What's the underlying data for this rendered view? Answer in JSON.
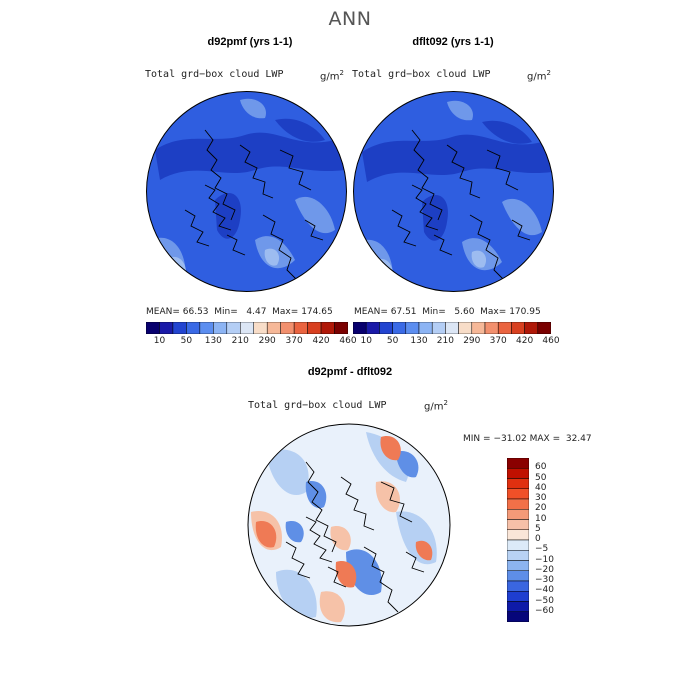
{
  "figure": {
    "title": "ANN"
  },
  "panels": [
    {
      "title": "d92pmf (yrs 1-1)",
      "variable": "Total grd−box cloud LWP",
      "units": "g/m",
      "units_exp": "2",
      "stats": {
        "mean_label": "MEAN=",
        "mean": "66.53",
        "min_label": "Min=",
        "min": "4.47",
        "max_label": "Max=",
        "max": "174.65"
      }
    },
    {
      "title": "dflt092 (yrs 1-1)",
      "variable": "Total grd−box cloud LWP",
      "units": "g/m",
      "units_exp": "2",
      "stats": {
        "mean_label": "MEAN=",
        "mean": "67.51",
        "min_label": "Min=",
        "min": "5.60",
        "max_label": "Max=",
        "max": "170.95"
      }
    }
  ],
  "diff_panel": {
    "title": "d92pmf - dflt092",
    "variable": "Total grd−box cloud LWP",
    "units": "g/m",
    "units_exp": "2",
    "stats": {
      "min_label": "MIN =",
      "min": "−31.02",
      "max_label": "MAX =",
      "max": "32.47"
    }
  },
  "colorbar_top": {
    "tick_labels": [
      "10",
      "50",
      "130",
      "210",
      "290",
      "370",
      "420",
      "460"
    ],
    "colors": [
      "#08006e",
      "#1a1aa8",
      "#2244d0",
      "#3a6ae6",
      "#5c8ef0",
      "#8cb4f4",
      "#b4cef5",
      "#dce6f5",
      "#f8ddc8",
      "#f6b898",
      "#f2906e",
      "#ea6440",
      "#d84020",
      "#b01808",
      "#7a0000"
    ]
  },
  "colorbar_diff": {
    "tick_labels": [
      "60",
      "50",
      "40",
      "30",
      "20",
      "10",
      "5",
      "0",
      "−5",
      "−10",
      "−20",
      "−30",
      "−40",
      "−50",
      "−60"
    ],
    "colors": [
      "#8a0000",
      "#c01000",
      "#e03010",
      "#f05028",
      "#f27048",
      "#f49a78",
      "#f6c0a8",
      "#fae6d8",
      "#dceaf8",
      "#b8d2f4",
      "#8cb4f0",
      "#5e8ee8",
      "#3a66e0",
      "#1e3ed0",
      "#0e1aa8",
      "#06067a"
    ]
  },
  "map_colors": {
    "base": "#2f5ee0",
    "dark": "#1d3fc4",
    "light": "#6f98ea",
    "pale": "#9dbcf0",
    "coast": "#000000",
    "diff_neutral": "#e9f1fb",
    "diff_red": "#ef7a55",
    "diff_pink": "#f6c2a8",
    "diff_blue": "#5f8fe6",
    "diff_lightblue": "#b6d0f3"
  }
}
